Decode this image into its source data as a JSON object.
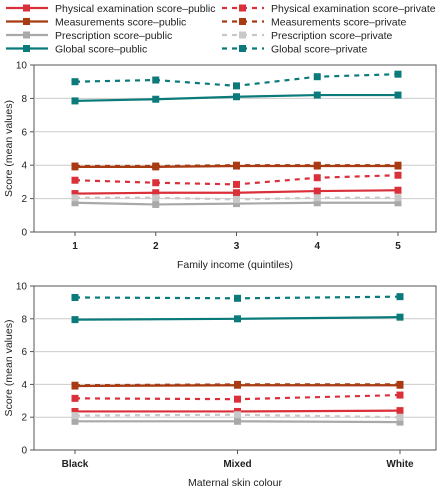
{
  "colors": {
    "physical": "#d9303a",
    "measurements": "#a83b12",
    "prescription": "#a9a9a9",
    "global": "#0b7a7a",
    "grid": "#cccccc",
    "axis": "#555555"
  },
  "legend": [
    {
      "label": "Physical examination score–public",
      "color": "#d9303a",
      "style": "solid"
    },
    {
      "label": "Physical examination score–private",
      "color": "#d9303a",
      "style": "dashed"
    },
    {
      "label": "Measurements score–public",
      "color": "#a83b12",
      "style": "solid"
    },
    {
      "label": "Measurements score–private",
      "color": "#a83b12",
      "style": "dashed"
    },
    {
      "label": "Prescription score–public",
      "color": "#a9a9a9",
      "style": "solid"
    },
    {
      "label": "Prescription score–private",
      "color": "#c8c8c8",
      "style": "dashed"
    },
    {
      "label": "Global score–public",
      "color": "#0b7a7a",
      "style": "solid"
    },
    {
      "label": "Global score–private",
      "color": "#0b7a7a",
      "style": "dashed"
    }
  ],
  "chart_data": [
    {
      "type": "line",
      "xlabel": "Family income (quintiles)",
      "ylabel": "Score (mean values)",
      "categories": [
        "1",
        "2",
        "3",
        "4",
        "5"
      ],
      "ylim": [
        0,
        10
      ],
      "yticks": [
        "0",
        "2",
        "4",
        "6",
        "8",
        "10"
      ],
      "grid": true,
      "series": [
        {
          "name": "Physical examination score–public",
          "style": "solid",
          "color": "#d9303a",
          "values": [
            2.3,
            2.35,
            2.35,
            2.45,
            2.5
          ]
        },
        {
          "name": "Physical examination score–private",
          "style": "dashed",
          "color": "#d9303a",
          "values": [
            3.1,
            2.95,
            2.85,
            3.25,
            3.4
          ]
        },
        {
          "name": "Measurements score–public",
          "style": "solid",
          "color": "#a83b12",
          "values": [
            3.9,
            3.9,
            3.95,
            3.95,
            3.95
          ]
        },
        {
          "name": "Measurements score–private",
          "style": "dashed",
          "color": "#a83b12",
          "values": [
            3.95,
            3.95,
            4.0,
            4.0,
            4.0
          ]
        },
        {
          "name": "Prescription score–public",
          "style": "solid",
          "color": "#a9a9a9",
          "values": [
            1.75,
            1.65,
            1.7,
            1.75,
            1.75
          ]
        },
        {
          "name": "Prescription score–private",
          "style": "dashed",
          "color": "#c8c8c8",
          "values": [
            2.05,
            2.05,
            1.95,
            2.05,
            2.05
          ]
        },
        {
          "name": "Global score–public",
          "style": "solid",
          "color": "#0b7a7a",
          "values": [
            7.85,
            7.95,
            8.1,
            8.2,
            8.2
          ]
        },
        {
          "name": "Global score–private",
          "style": "dashed",
          "color": "#0b7a7a",
          "values": [
            9.0,
            9.1,
            8.75,
            9.3,
            9.45
          ]
        }
      ]
    },
    {
      "type": "line",
      "xlabel": "Maternal skin colour",
      "ylabel": "Score (mean values)",
      "categories": [
        "Black",
        "Mixed",
        "White"
      ],
      "ylim": [
        0,
        10
      ],
      "yticks": [
        "0",
        "2",
        "4",
        "6",
        "8",
        "10"
      ],
      "grid": true,
      "series": [
        {
          "name": "Physical examination score–public",
          "style": "solid",
          "color": "#d9303a",
          "values": [
            2.35,
            2.35,
            2.4
          ]
        },
        {
          "name": "Physical examination score–private",
          "style": "dashed",
          "color": "#d9303a",
          "values": [
            3.15,
            3.1,
            3.35
          ]
        },
        {
          "name": "Measurements score–public",
          "style": "solid",
          "color": "#a83b12",
          "values": [
            3.9,
            3.95,
            3.95
          ]
        },
        {
          "name": "Measurements score–private",
          "style": "dashed",
          "color": "#a83b12",
          "values": [
            3.95,
            4.0,
            4.0
          ]
        },
        {
          "name": "Prescription score–public",
          "style": "solid",
          "color": "#a9a9a9",
          "values": [
            1.75,
            1.75,
            1.7
          ]
        },
        {
          "name": "Prescription score–private",
          "style": "dashed",
          "color": "#c8c8c8",
          "values": [
            2.1,
            2.15,
            2.0
          ]
        },
        {
          "name": "Global score–public",
          "style": "solid",
          "color": "#0b7a7a",
          "values": [
            7.95,
            8.0,
            8.1
          ]
        },
        {
          "name": "Global score–private",
          "style": "dashed",
          "color": "#0b7a7a",
          "values": [
            9.3,
            9.25,
            9.35
          ]
        }
      ]
    }
  ]
}
